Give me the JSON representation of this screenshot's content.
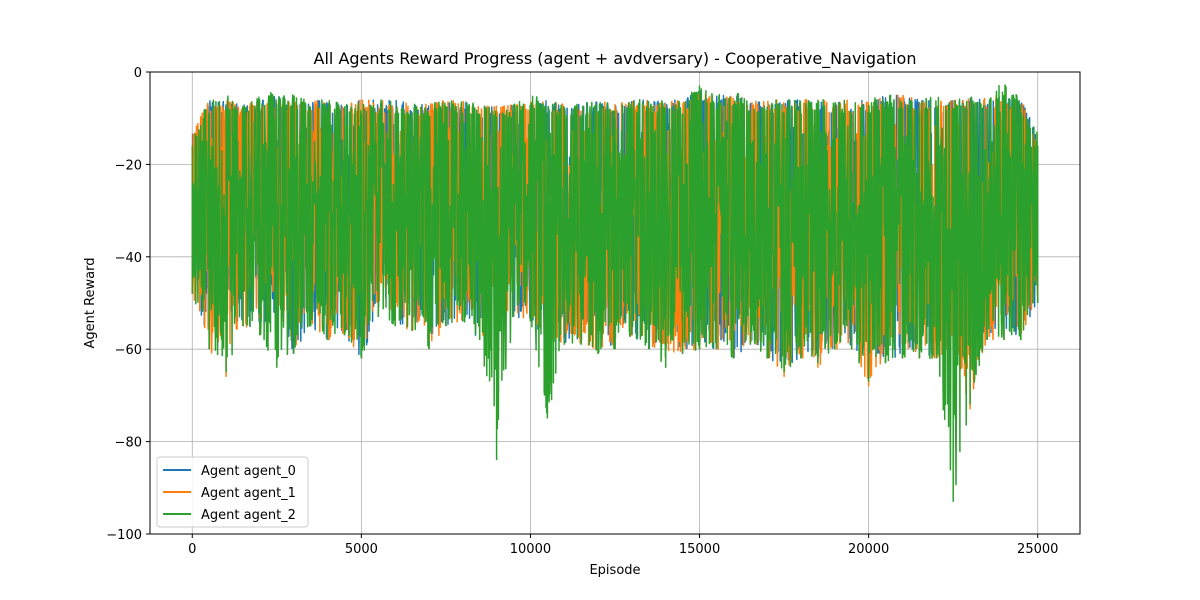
{
  "chart_data": {
    "type": "line",
    "title": "All Agents Reward Progress (agent + avdversary) - Cooperative_Navigation",
    "xlabel": "Episode",
    "ylabel": "Agent Reward",
    "xlim": [
      -1250,
      26250
    ],
    "ylim": [
      -100,
      0
    ],
    "xticks": [
      0,
      5000,
      10000,
      15000,
      20000,
      25000
    ],
    "xtick_labels": [
      "0",
      "5000",
      "10000",
      "15000",
      "20000",
      "25000"
    ],
    "yticks": [
      0,
      -20,
      -40,
      -60,
      -80,
      -100
    ],
    "ytick_labels": [
      "0",
      "−20",
      "−40",
      "−60",
      "−80",
      "−100"
    ],
    "grid": true,
    "legend_position": "lower-left",
    "episode_range": [
      0,
      25000
    ],
    "series": [
      {
        "name": "Agent agent_0",
        "color": "#1f77b4",
        "x": [
          0,
          500,
          1000,
          1500,
          2000,
          2500,
          3000,
          3500,
          4000,
          4500,
          5000,
          5500,
          6000,
          6500,
          7000,
          7500,
          8000,
          8500,
          9000,
          9500,
          10000,
          10500,
          11000,
          11500,
          12000,
          12500,
          13000,
          13500,
          14000,
          14500,
          15000,
          15500,
          16000,
          16500,
          17000,
          17500,
          18000,
          18500,
          19000,
          19500,
          20000,
          20500,
          21000,
          21500,
          22000,
          22500,
          23000,
          23500,
          24000,
          24500,
          25000
        ],
        "upper": [
          -16,
          -9,
          -9,
          -10,
          -9,
          -8,
          -9,
          -9,
          -9,
          -10,
          -9,
          -9,
          -9,
          -10,
          -10,
          -9,
          -9,
          -10,
          -10,
          -10,
          -9,
          -9,
          -10,
          -10,
          -9,
          -10,
          -9,
          -9,
          -9,
          -9,
          -7,
          -8,
          -8,
          -9,
          -9,
          -9,
          -9,
          -9,
          -9,
          -9,
          -9,
          -8,
          -8,
          -9,
          -9,
          -9,
          -8,
          -8,
          -8,
          -9,
          -16
        ],
        "lower": [
          -48,
          -60,
          -52,
          -55,
          -57,
          -54,
          -61,
          -55,
          -58,
          -57,
          -62,
          -53,
          -55,
          -56,
          -60,
          -55,
          -54,
          -58,
          -55,
          -53,
          -54,
          -58,
          -59,
          -59,
          -61,
          -60,
          -57,
          -60,
          -61,
          -61,
          -60,
          -60,
          -62,
          -59,
          -62,
          -64,
          -62,
          -62,
          -60,
          -60,
          -62,
          -63,
          -62,
          -62,
          -62,
          -60,
          -60,
          -58,
          -58,
          -58,
          -50
        ]
      },
      {
        "name": "Agent agent_1",
        "color": "#ff7f0e",
        "x": [
          0,
          500,
          1000,
          1500,
          2000,
          2500,
          3000,
          3500,
          4000,
          4500,
          5000,
          5500,
          6000,
          6500,
          7000,
          7500,
          8000,
          8500,
          9000,
          9500,
          10000,
          10500,
          11000,
          11500,
          12000,
          12500,
          13000,
          13500,
          14000,
          14500,
          15000,
          15500,
          16000,
          16500,
          17000,
          17500,
          18000,
          18500,
          19000,
          19500,
          20000,
          20500,
          21000,
          21500,
          22000,
          22500,
          23000,
          23500,
          24000,
          24500,
          25000
        ],
        "upper": [
          -16,
          -9,
          -9,
          -10,
          -9,
          -8,
          -9,
          -9,
          -9,
          -10,
          -9,
          -9,
          -9,
          -10,
          -10,
          -9,
          -9,
          -10,
          -10,
          -10,
          -9,
          -9,
          -10,
          -10,
          -9,
          -10,
          -9,
          -9,
          -9,
          -9,
          -7,
          -8,
          -8,
          -9,
          -9,
          -9,
          -9,
          -9,
          -9,
          -9,
          -9,
          -8,
          -8,
          -9,
          -9,
          -9,
          -8,
          -8,
          -8,
          -9,
          -16
        ],
        "lower": [
          -48,
          -60,
          -66,
          -55,
          -57,
          -54,
          -61,
          -55,
          -58,
          -57,
          -62,
          -53,
          -55,
          -56,
          -60,
          -55,
          -54,
          -58,
          -55,
          -53,
          -54,
          -58,
          -59,
          -59,
          -61,
          -60,
          -57,
          -60,
          -61,
          -61,
          -60,
          -60,
          -62,
          -59,
          -62,
          -66,
          -62,
          -64,
          -60,
          -60,
          -68,
          -63,
          -62,
          -62,
          -62,
          -60,
          -73,
          -58,
          -58,
          -58,
          -50
        ]
      },
      {
        "name": "Agent agent_2",
        "color": "#2ca02c",
        "x": [
          0,
          500,
          1000,
          1500,
          2000,
          2500,
          3000,
          3500,
          4000,
          4500,
          5000,
          5500,
          6000,
          6500,
          7000,
          7500,
          8000,
          8500,
          9000,
          9500,
          10000,
          10500,
          11000,
          11500,
          12000,
          12500,
          13000,
          13500,
          14000,
          14500,
          15000,
          15500,
          16000,
          16500,
          17000,
          17500,
          18000,
          18500,
          19000,
          19500,
          20000,
          20500,
          21000,
          21500,
          22000,
          22500,
          23000,
          23500,
          24000,
          24500,
          25000
        ],
        "upper": [
          -16,
          -9,
          -8,
          -10,
          -8,
          -7,
          -8,
          -9,
          -9,
          -10,
          -9,
          -9,
          -9,
          -10,
          -10,
          -9,
          -9,
          -10,
          -10,
          -10,
          -8,
          -9,
          -10,
          -10,
          -9,
          -10,
          -9,
          -9,
          -9,
          -9,
          -6,
          -8,
          -7,
          -9,
          -9,
          -9,
          -9,
          -9,
          -9,
          -9,
          -9,
          -8,
          -8,
          -9,
          -8,
          -9,
          -8,
          -8,
          -5,
          -9,
          -16
        ],
        "lower": [
          -48,
          -60,
          -65,
          -55,
          -57,
          -64,
          -61,
          -55,
          -58,
          -57,
          -62,
          -53,
          -55,
          -56,
          -60,
          -55,
          -54,
          -58,
          -84,
          -53,
          -54,
          -75,
          -59,
          -59,
          -61,
          -60,
          -57,
          -60,
          -64,
          -61,
          -60,
          -60,
          -62,
          -59,
          -62,
          -65,
          -62,
          -63,
          -60,
          -60,
          -67,
          -63,
          -62,
          -62,
          -62,
          -93,
          -72,
          -58,
          -58,
          -58,
          -50
        ]
      }
    ]
  }
}
